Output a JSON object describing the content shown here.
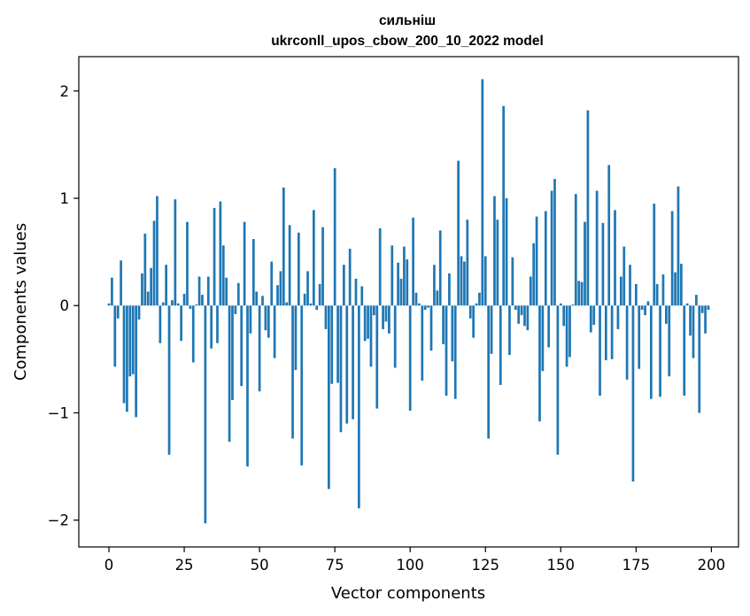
{
  "chart_data": {
    "type": "bar",
    "title": "сильніш",
    "subtitle": "ukrconll_upos_cbow_200_10_2022 model",
    "xlabel": "Vector components",
    "ylabel": "Components values",
    "xlim": [
      -10,
      209
    ],
    "ylim": [
      -2.25,
      2.32
    ],
    "xticks": [
      0,
      25,
      50,
      75,
      100,
      125,
      150,
      175,
      200
    ],
    "yticks": [
      -2,
      -1,
      0,
      1,
      2
    ],
    "xtick_labels": [
      "0",
      "25",
      "50",
      "75",
      "100",
      "125",
      "150",
      "175",
      "200"
    ],
    "ytick_labels": [
      "−2",
      "−1",
      "0",
      "1",
      "2"
    ],
    "grid": false,
    "bar_color": "#1f77b4",
    "x": [
      0,
      1,
      2,
      3,
      4,
      5,
      6,
      7,
      8,
      9,
      10,
      11,
      12,
      13,
      14,
      15,
      16,
      17,
      18,
      19,
      20,
      21,
      22,
      23,
      24,
      25,
      26,
      27,
      28,
      29,
      30,
      31,
      32,
      33,
      34,
      35,
      36,
      37,
      38,
      39,
      40,
      41,
      42,
      43,
      44,
      45,
      46,
      47,
      48,
      49,
      50,
      51,
      52,
      53,
      54,
      55,
      56,
      57,
      58,
      59,
      60,
      61,
      62,
      63,
      64,
      65,
      66,
      67,
      68,
      69,
      70,
      71,
      72,
      73,
      74,
      75,
      76,
      77,
      78,
      79,
      80,
      81,
      82,
      83,
      84,
      85,
      86,
      87,
      88,
      89,
      90,
      91,
      92,
      93,
      94,
      95,
      96,
      97,
      98,
      99,
      100,
      101,
      102,
      103,
      104,
      105,
      106,
      107,
      108,
      109,
      110,
      111,
      112,
      113,
      114,
      115,
      116,
      117,
      118,
      119,
      120,
      121,
      122,
      123,
      124,
      125,
      126,
      127,
      128,
      129,
      130,
      131,
      132,
      133,
      134,
      135,
      136,
      137,
      138,
      139,
      140,
      141,
      142,
      143,
      144,
      145,
      146,
      147,
      148,
      149,
      150,
      151,
      152,
      153,
      154,
      155,
      156,
      157,
      158,
      159,
      160,
      161,
      162,
      163,
      164,
      165,
      166,
      167,
      168,
      169,
      170,
      171,
      172,
      173,
      174,
      175,
      176,
      177,
      178,
      179,
      180,
      181,
      182,
      183,
      184,
      185,
      186,
      187,
      188,
      189,
      190,
      191,
      192,
      193,
      194,
      195,
      196,
      197,
      198,
      199
    ],
    "values": [
      0.02,
      0.26,
      -0.57,
      -0.12,
      0.42,
      -0.91,
      -0.99,
      -0.66,
      -0.64,
      -1.04,
      -0.13,
      0.3,
      0.67,
      0.13,
      0.35,
      0.79,
      1.02,
      -0.35,
      0.03,
      0.38,
      -1.39,
      0.05,
      0.99,
      0.02,
      -0.33,
      0.11,
      0.78,
      -0.03,
      -0.53,
      0.01,
      0.27,
      0.1,
      -2.03,
      0.27,
      -0.4,
      0.91,
      -0.35,
      0.97,
      0.56,
      0.26,
      -1.27,
      -0.88,
      -0.08,
      0.21,
      -0.75,
      0.78,
      -1.5,
      -0.26,
      0.62,
      0.13,
      -0.8,
      0.09,
      -0.23,
      -0.3,
      0.41,
      -0.49,
      0.19,
      0.32,
      1.1,
      0.03,
      0.75,
      -1.24,
      -0.6,
      0.68,
      -1.49,
      0.11,
      0.32,
      0.02,
      0.89,
      -0.04,
      0.2,
      0.73,
      -0.22,
      -1.71,
      -0.73,
      1.28,
      -0.72,
      -1.18,
      0.38,
      -1.1,
      0.53,
      -1.06,
      0.25,
      -1.89,
      0.18,
      -0.33,
      -0.31,
      -0.57,
      -0.09,
      -0.96,
      0.72,
      -0.22,
      -0.15,
      -0.26,
      0.56,
      -0.58,
      0.4,
      0.25,
      0.55,
      0.43,
      -0.98,
      0.82,
      0.12,
      0.02,
      -0.7,
      -0.04,
      -0.02,
      -0.42,
      0.38,
      0.14,
      0.7,
      -0.36,
      -0.84,
      0.3,
      -0.52,
      -0.87,
      1.35,
      0.46,
      0.41,
      0.8,
      -0.12,
      -0.3,
      0.02,
      0.12,
      2.11,
      0.46,
      -1.24,
      -0.45,
      1.02,
      0.8,
      -0.74,
      1.86,
      1.0,
      -0.46,
      0.45,
      -0.04,
      -0.17,
      -0.09,
      -0.19,
      -0.23,
      0.27,
      0.58,
      0.83,
      -1.08,
      -0.61,
      0.88,
      -0.39,
      1.07,
      1.18,
      -1.39,
      0.02,
      -0.19,
      -0.57,
      -0.48,
      0.01,
      1.04,
      0.23,
      0.22,
      0.78,
      1.82,
      -0.25,
      -0.18,
      1.07,
      -0.84,
      0.77,
      -0.51,
      1.31,
      -0.5,
      0.89,
      -0.22,
      0.27,
      0.55,
      -0.69,
      0.38,
      -1.64,
      0.2,
      -0.59,
      -0.04,
      -0.09,
      0.04,
      -0.87,
      0.95,
      0.2,
      -0.85,
      0.29,
      -0.17,
      -0.66,
      0.88,
      0.31,
      1.11,
      0.39,
      -0.84,
      0.02,
      -0.28,
      -0.49,
      0.1,
      -1.0,
      -0.07,
      -0.26,
      -0.04
    ]
  }
}
